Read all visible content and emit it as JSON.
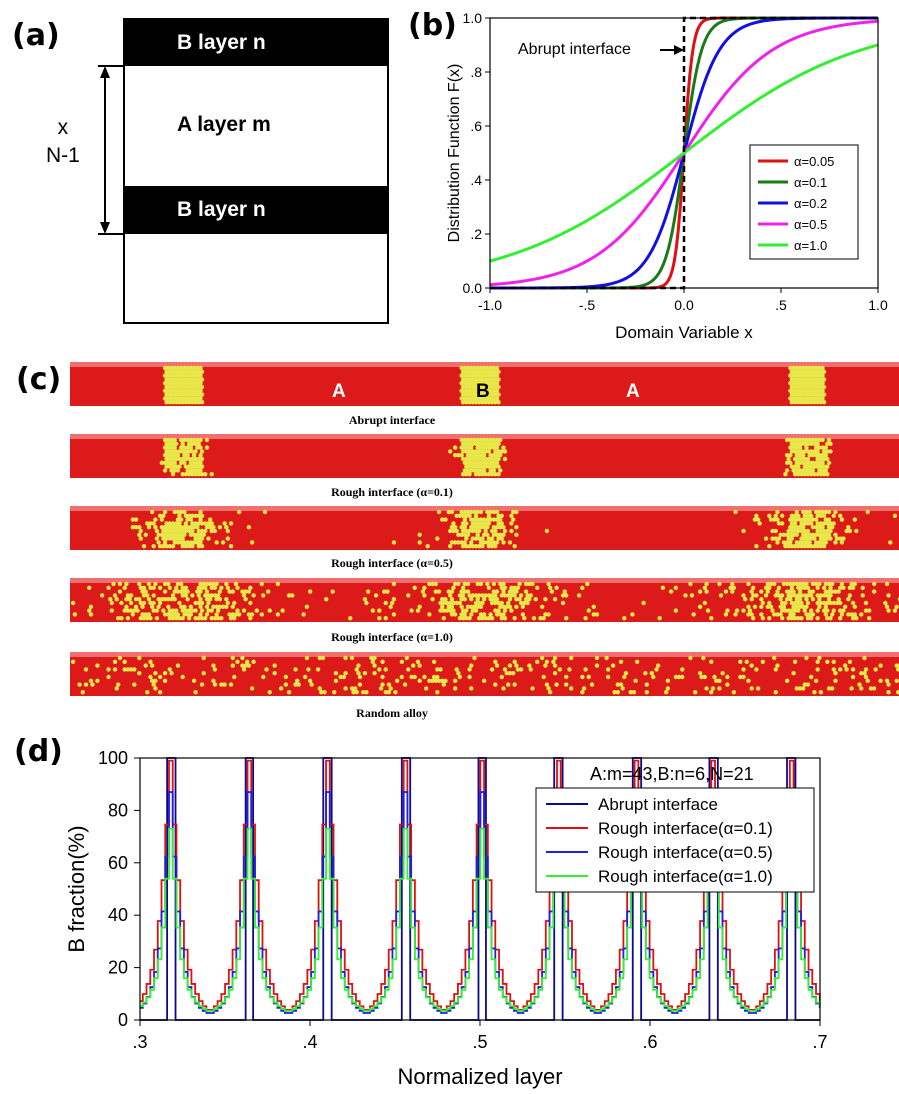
{
  "panel_labels": {
    "a": "(a)",
    "b": "(b)",
    "c": "(c)",
    "d": "(d)"
  },
  "panel_a": {
    "top_layer": "B layer n",
    "middle_layer": "A layer m",
    "bottom_layer": "B layer n",
    "repeat_x": "x",
    "repeat_n": "N-1"
  },
  "panel_c": {
    "strips": [
      {
        "caption": "Abrupt interface",
        "alpha": null
      },
      {
        "caption": "Rough interface (α=0.1)",
        "alpha": 0.1
      },
      {
        "caption": "Rough interface (α=0.5)",
        "alpha": 0.5
      },
      {
        "caption": "Rough interface (α=1.0)",
        "alpha": 1.0
      },
      {
        "caption": "Random alloy",
        "alpha": null
      }
    ],
    "region_labels": [
      "A",
      "B",
      "A"
    ],
    "colors": {
      "A": "#dd1a1a",
      "B": "#e8e84a"
    }
  },
  "chart_data": [
    {
      "type": "line",
      "title": "",
      "xlabel": "Domain Variable x",
      "ylabel": "Distribution Function F(x)",
      "xlim": [
        -1.0,
        1.0
      ],
      "ylim": [
        0.0,
        1.0
      ],
      "xticks": [
        "-1.0",
        "-.5",
        "0.0",
        ".5",
        "1.0"
      ],
      "yticks": [
        "0.0",
        ".2",
        ".4",
        ".6",
        ".8",
        "1.0"
      ],
      "annotation": "Abrupt interface",
      "legend_position": "bottom-right",
      "abrupt_color": "#000000",
      "series": [
        {
          "name": "α=0.05",
          "alpha": 0.05,
          "color": "#e01010"
        },
        {
          "name": "α=0.1",
          "alpha": 0.1,
          "color": "#1a7a1a"
        },
        {
          "name": "α=0.2",
          "alpha": 0.2,
          "color": "#1010e0"
        },
        {
          "name": "α=0.5",
          "alpha": 0.5,
          "color": "#ee22ee"
        },
        {
          "name": "α=1.0",
          "alpha": 1.0,
          "color": "#33ee33"
        }
      ]
    },
    {
      "type": "line",
      "title": "",
      "annotation": "A:m=43,B:n=6,N=21",
      "xlabel": "Normalized layer",
      "ylabel": "B fraction(%)",
      "xlim": [
        0.3,
        0.7
      ],
      "ylim": [
        0,
        100
      ],
      "xticks": [
        ".3",
        ".4",
        ".5",
        ".6",
        ".7"
      ],
      "yticks": [
        "0",
        "20",
        "40",
        "60",
        "80",
        "100"
      ],
      "peak_centers": [
        0.318,
        0.364,
        0.41,
        0.456,
        0.501,
        0.546,
        0.592,
        0.637,
        0.683
      ],
      "legend_position": "top-right",
      "series": [
        {
          "name": "Abrupt interface",
          "color": "#0a0a90",
          "peak": 100,
          "baseline": 0,
          "width": 0.007
        },
        {
          "name": "Rough interface(α=0.1)",
          "color": "#e01010",
          "peak": 99,
          "baseline": 2,
          "width": 0.006
        },
        {
          "name": "Rough interface(α=0.5)",
          "color": "#2020e0",
          "peak": 87,
          "baseline": 3,
          "width": 0.0045
        },
        {
          "name": "Rough interface(α=1.0)",
          "color": "#33ee33",
          "peak": 73,
          "baseline": 5,
          "width": 0.0035
        }
      ]
    }
  ]
}
